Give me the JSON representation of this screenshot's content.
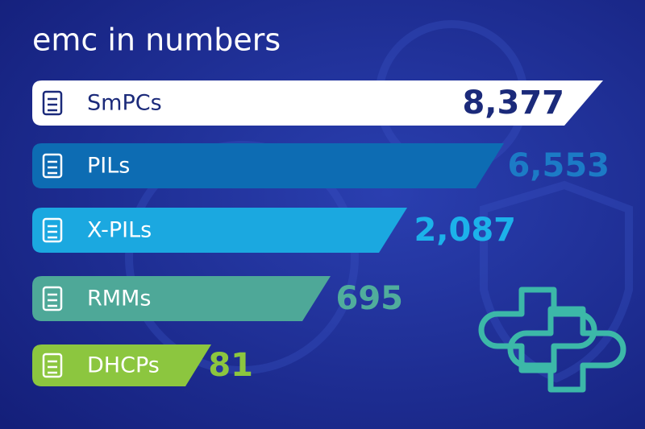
{
  "title": "emc in numbers",
  "items": [
    {
      "label": "SmPCs",
      "value": "8,377"
    },
    {
      "label": "PILs",
      "value": "6,553"
    },
    {
      "label": "X-PILs",
      "value": "2,087"
    },
    {
      "label": "RMMs",
      "value": "695"
    },
    {
      "label": "DHCPs",
      "value": "81"
    }
  ]
}
